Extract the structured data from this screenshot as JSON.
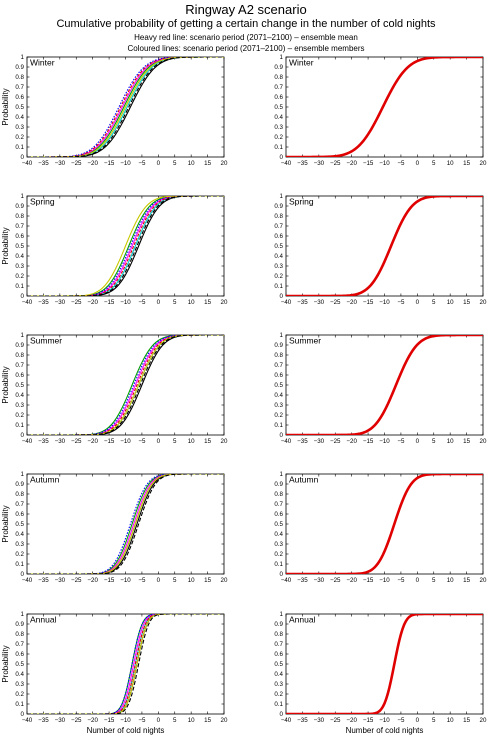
{
  "header": {
    "title": "Ringway A2 scenario",
    "subtitle": "Cumulative probability of getting a certain change in the number of cold nights",
    "note_mean": "Heavy red line: scenario period (2071–2100) – ensemble mean",
    "note_members": "Coloured lines: scenario period (2071–2100) – ensemble members"
  },
  "axes": {
    "xlabel": "Number of cold nights",
    "ylabel": "Probability",
    "xlim": [
      -40,
      20
    ],
    "ylim": [
      0,
      1
    ],
    "xticks": [
      -40,
      -35,
      -30,
      -25,
      -20,
      -15,
      -10,
      -5,
      0,
      5,
      10,
      15,
      20
    ],
    "yticks": [
      0,
      0.1,
      0.2,
      0.3,
      0.4,
      0.5,
      0.6,
      0.7,
      0.8,
      0.9,
      1
    ],
    "ytick_labels": [
      "0",
      "0.1",
      "0.2",
      "0.3",
      "0.4",
      "0.5",
      "0.6",
      "0.7",
      "0.8",
      "0.9",
      "1"
    ]
  },
  "colors": {
    "ensemble_mean": "#e00000",
    "members": [
      "#000000",
      "#00c8c8",
      "#00a000",
      "#ff00ff",
      "#e00000",
      "#0000ff",
      "#c8c800",
      "#000000"
    ]
  },
  "chart_data": [
    {
      "type": "line",
      "season": "Winter",
      "column": "ensemble-members",
      "series": [
        {
          "x": [
            -33,
            -23,
            -16,
            -10,
            -4,
            3,
            10,
            16
          ],
          "y": [
            0,
            0.05,
            0.2,
            0.5,
            0.8,
            0.95,
            0.99,
            1
          ]
        }
      ],
      "members": [
        -8.5,
        -9.5,
        -10.5,
        -11,
        -11.5,
        -12,
        -10,
        -9
      ],
      "spread": 6
    },
    {
      "type": "line",
      "season": "Winter",
      "column": "ensemble-mean",
      "series": [
        {
          "x": [
            -33,
            -23,
            -16,
            -10.5,
            -5,
            2,
            9,
            16
          ],
          "y": [
            0,
            0.05,
            0.2,
            0.5,
            0.8,
            0.95,
            0.99,
            1
          ]
        }
      ],
      "mean": -10.5,
      "spread": 6
    },
    {
      "type": "line",
      "season": "Spring",
      "column": "ensemble-members",
      "series": [
        {
          "x": [
            -28,
            -18,
            -13,
            -8,
            -3,
            2,
            6,
            10
          ],
          "y": [
            0,
            0.05,
            0.2,
            0.5,
            0.8,
            0.95,
            0.99,
            1
          ]
        }
      ],
      "members": [
        -6,
        -7,
        -9,
        -8,
        -7.5,
        -8.5,
        -10,
        -6.5
      ],
      "spread": 5
    },
    {
      "type": "line",
      "season": "Spring",
      "column": "ensemble-mean",
      "series": [
        {
          "x": [
            -28,
            -18,
            -13,
            -8,
            -3,
            2,
            6,
            10
          ],
          "y": [
            0,
            0.05,
            0.2,
            0.5,
            0.8,
            0.95,
            0.99,
            1
          ]
        }
      ],
      "mean": -8,
      "spread": 5
    },
    {
      "type": "line",
      "season": "Summer",
      "column": "ensemble-members",
      "series": [
        {
          "x": [
            -25,
            -17,
            -12,
            -6,
            -1,
            4,
            8,
            12
          ],
          "y": [
            0,
            0.05,
            0.2,
            0.5,
            0.8,
            0.95,
            0.99,
            1
          ]
        }
      ],
      "members": [
        -5,
        -6,
        -8,
        -7,
        -6.5,
        -7.5,
        -6,
        -5.5
      ],
      "spread": 5
    },
    {
      "type": "line",
      "season": "Summer",
      "column": "ensemble-mean",
      "series": [
        {
          "x": [
            -25,
            -17,
            -12,
            -6.5,
            -1.5,
            3,
            8,
            12
          ],
          "y": [
            0,
            0.05,
            0.2,
            0.5,
            0.8,
            0.95,
            0.99,
            1
          ]
        }
      ],
      "mean": -6.5,
      "spread": 5
    },
    {
      "type": "line",
      "season": "Autumn",
      "column": "ensemble-members",
      "series": [
        {
          "x": [
            -22,
            -15,
            -11,
            -7,
            -3,
            1,
            5,
            8
          ],
          "y": [
            0,
            0.05,
            0.2,
            0.5,
            0.8,
            0.95,
            0.99,
            1
          ]
        }
      ],
      "members": [
        -6.5,
        -7,
        -8,
        -7.5,
        -7,
        -8.5,
        -7,
        -6
      ],
      "spread": 4
    },
    {
      "type": "line",
      "season": "Autumn",
      "column": "ensemble-mean",
      "series": [
        {
          "x": [
            -22,
            -15,
            -11,
            -7,
            -3,
            1,
            5,
            8
          ],
          "y": [
            0,
            0.05,
            0.2,
            0.5,
            0.8,
            0.95,
            0.99,
            1
          ]
        }
      ],
      "mean": -7,
      "spread": 4
    },
    {
      "type": "line",
      "season": "Annual",
      "column": "ensemble-members",
      "series": [
        {
          "x": [
            -18,
            -13,
            -10,
            -7,
            -4,
            -1,
            1,
            3
          ],
          "y": [
            0,
            0.05,
            0.2,
            0.5,
            0.8,
            0.95,
            0.99,
            1
          ]
        }
      ],
      "members": [
        -6.5,
        -7,
        -8,
        -7.5,
        -7,
        -8,
        -6.5,
        -6
      ],
      "spread": 2.4
    },
    {
      "type": "line",
      "season": "Annual",
      "column": "ensemble-mean",
      "series": [
        {
          "x": [
            -18,
            -13,
            -10,
            -7,
            -4,
            -1.5,
            1,
            3
          ],
          "y": [
            0,
            0.05,
            0.2,
            0.5,
            0.8,
            0.95,
            0.99,
            1
          ]
        }
      ],
      "mean": -7,
      "spread": 2.4
    }
  ]
}
